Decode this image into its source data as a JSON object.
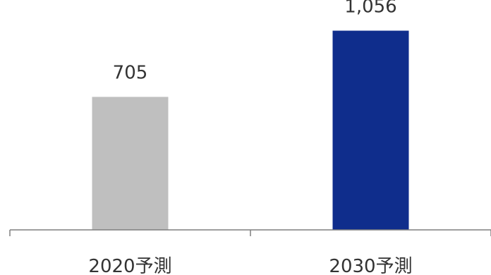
{
  "chart_data": {
    "type": "bar",
    "categories": [
      "2020予測",
      "2030予測"
    ],
    "values": [
      705,
      1056
    ],
    "data_labels": [
      "705",
      "1,056"
    ],
    "colors": [
      "#bfbfbf",
      "#0f2d8c"
    ],
    "axis_color": "#7f7f7f",
    "ylim": [
      0,
      1200
    ],
    "grid": false,
    "legend": "none"
  }
}
